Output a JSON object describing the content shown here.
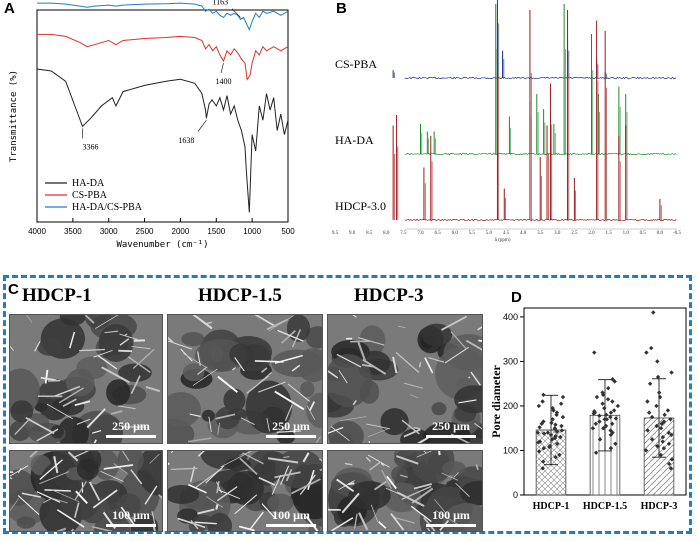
{
  "panels": {
    "a": "A",
    "b": "B",
    "c": "C",
    "d": "D"
  },
  "chart_data": [
    {
      "type": "line",
      "panel": "A",
      "xlabel": "Wavenumber (cm⁻¹)",
      "ylabel": "Transmittance (%)",
      "xlim": [
        4000,
        500
      ],
      "xticks": [
        "4000",
        "3500",
        "3000",
        "2500",
        "2000",
        "1500",
        "1000",
        "500"
      ],
      "series": [
        {
          "name": "HA-DA",
          "color": "#222222",
          "x": [
            4000,
            3800,
            3600,
            3450,
            3366,
            3250,
            3100,
            2950,
            2900,
            2800,
            2500,
            2200,
            2000,
            1800,
            1700,
            1650,
            1638,
            1600,
            1560,
            1500,
            1450,
            1400,
            1350,
            1300,
            1250,
            1200,
            1150,
            1100,
            1080,
            1040,
            1000,
            950,
            900,
            850,
            800,
            750,
            700,
            650,
            600,
            550,
            500
          ],
          "y": [
            0.8,
            0.79,
            0.74,
            0.6,
            0.52,
            0.56,
            0.62,
            0.66,
            0.62,
            0.69,
            0.72,
            0.74,
            0.75,
            0.73,
            0.68,
            0.6,
            0.56,
            0.63,
            0.65,
            0.62,
            0.66,
            0.6,
            0.67,
            0.58,
            0.62,
            0.55,
            0.5,
            0.42,
            0.3,
            0.1,
            0.48,
            0.4,
            0.62,
            0.55,
            0.68,
            0.6,
            0.66,
            0.5,
            0.58,
            0.48,
            0.55
          ]
        },
        {
          "name": "CS-PBA",
          "color": "#e0302a",
          "x": [
            4000,
            3800,
            3600,
            3400,
            3300,
            3200,
            3000,
            2900,
            2800,
            2500,
            2200,
            2000,
            1800,
            1700,
            1650,
            1600,
            1550,
            1500,
            1450,
            1400,
            1350,
            1300,
            1250,
            1200,
            1150,
            1100,
            1070,
            1030,
            1000,
            950,
            900,
            850,
            800,
            700,
            600,
            500
          ],
          "y": [
            0.92,
            0.92,
            0.91,
            0.88,
            0.86,
            0.87,
            0.89,
            0.87,
            0.89,
            0.9,
            0.905,
            0.91,
            0.905,
            0.89,
            0.85,
            0.87,
            0.84,
            0.86,
            0.82,
            0.79,
            0.84,
            0.82,
            0.85,
            0.83,
            0.8,
            0.78,
            0.7,
            0.72,
            0.78,
            0.84,
            0.82,
            0.86,
            0.84,
            0.86,
            0.84,
            0.86
          ]
        },
        {
          "name": "HA-DA/CS-PBA",
          "color": "#1f7ec2",
          "x": [
            4000,
            3800,
            3600,
            3400,
            3300,
            3200,
            3000,
            2900,
            2800,
            2500,
            2200,
            2000,
            1800,
            1700,
            1650,
            1600,
            1550,
            1500,
            1450,
            1400,
            1350,
            1300,
            1250,
            1200,
            1163,
            1120,
            1080,
            1040,
            1000,
            950,
            900,
            850,
            800,
            700,
            600,
            500
          ],
          "y": [
            0.99,
            0.99,
            0.985,
            0.975,
            0.97,
            0.975,
            0.98,
            0.975,
            0.98,
            0.985,
            0.987,
            0.99,
            0.985,
            0.975,
            0.95,
            0.96,
            0.94,
            0.95,
            0.93,
            0.92,
            0.94,
            0.93,
            0.94,
            0.93,
            0.91,
            0.92,
            0.89,
            0.86,
            0.9,
            0.94,
            0.92,
            0.95,
            0.94,
            0.95,
            0.93,
            0.95
          ]
        }
      ],
      "annotations": [
        {
          "text": "3366",
          "x": 3366,
          "series": "HA-DA"
        },
        {
          "text": "1638",
          "x": 1638,
          "series": "HA-DA"
        },
        {
          "text": "1400",
          "x": 1400,
          "series": "CS-PBA"
        },
        {
          "text": "1163",
          "x": 1163,
          "series": "HA-DA/CS-PBA"
        }
      ],
      "legend": "bottom-left"
    },
    {
      "type": "line",
      "panel": "B",
      "xlabel": "δ (ppm)",
      "xlim": [
        9.5,
        -0.5
      ],
      "xticks": [
        "9.5",
        "9.0",
        "8.5",
        "8.0",
        "7.5",
        "7.0",
        "6.5",
        "6.0",
        "5.5",
        "5.0",
        "4.5",
        "4.0",
        "3.5",
        "3.0",
        "2.5",
        "2.0",
        "1.5",
        "1.0",
        "0.5",
        "0.0",
        "-0.5"
      ],
      "series": [
        {
          "name": "CS-PBA",
          "color": "#1c2f8c",
          "peaks": [
            [
              7.8,
              0.1
            ],
            [
              4.75,
              1.0
            ],
            [
              4.6,
              0.35
            ],
            [
              2.7,
              0.5
            ],
            [
              1.85,
              0.25
            ],
            [
              1.6,
              0.08
            ]
          ]
        },
        {
          "name": "HA-DA",
          "color": "#1f8a2e",
          "peaks": [
            [
              7.0,
              0.2
            ],
            [
              6.8,
              0.15
            ],
            [
              6.6,
              0.15
            ],
            [
              4.8,
              1.0
            ],
            [
              4.4,
              0.25
            ],
            [
              3.8,
              0.35
            ],
            [
              3.6,
              0.4
            ],
            [
              3.4,
              0.3
            ],
            [
              3.1,
              0.2
            ],
            [
              2.8,
              1.0
            ],
            [
              2.0,
              0.8
            ],
            [
              1.8,
              0.4
            ],
            [
              1.2,
              0.45
            ],
            [
              1.0,
              0.4
            ]
          ]
        },
        {
          "name": "HDCP-3.0",
          "color": "#9c1a1a",
          "peaks": [
            [
              7.8,
              0.45
            ],
            [
              7.7,
              0.5
            ],
            [
              6.9,
              0.25
            ],
            [
              6.7,
              0.4
            ],
            [
              4.75,
              1.0
            ],
            [
              4.55,
              0.15
            ],
            [
              3.8,
              1.0
            ],
            [
              3.5,
              0.3
            ],
            [
              3.3,
              0.45
            ],
            [
              3.2,
              0.65
            ],
            [
              2.7,
              1.0
            ],
            [
              2.5,
              0.2
            ],
            [
              1.85,
              0.95
            ],
            [
              1.6,
              0.9
            ],
            [
              1.2,
              0.4
            ],
            [
              1.0,
              0.45
            ],
            [
              0.0,
              0.1
            ]
          ]
        }
      ]
    },
    {
      "type": "bar",
      "panel": "D",
      "categories": [
        "HDCP-1",
        "HDCP-1.5",
        "HDCP-3"
      ],
      "values": [
        146,
        179,
        173
      ],
      "errors": [
        78,
        80,
        88
      ],
      "ylabel": "Pore diameter",
      "ylim": [
        0,
        420
      ],
      "yticks": [
        0,
        100,
        200,
        300,
        400
      ],
      "points": [
        [
          60,
          75,
          85,
          90,
          98,
          105,
          110,
          115,
          120,
          125,
          128,
          132,
          135,
          138,
          140,
          142,
          145,
          148,
          150,
          152,
          155,
          158,
          160,
          162,
          165,
          170,
          175,
          180,
          185,
          190,
          195,
          200,
          205,
          210,
          220,
          225,
          140,
          130,
          118,
          108
        ],
        [
          95,
          105,
          115,
          125,
          135,
          140,
          145,
          150,
          155,
          160,
          165,
          170,
          172,
          175,
          178,
          180,
          183,
          185,
          188,
          190,
          195,
          200,
          205,
          210,
          215,
          220,
          225,
          230,
          240,
          255,
          260,
          320,
          170,
          160,
          150,
          185
        ],
        [
          60,
          70,
          80,
          90,
          100,
          105,
          110,
          115,
          125,
          135,
          140,
          145,
          150,
          155,
          160,
          165,
          170,
          175,
          180,
          190,
          200,
          210,
          220,
          230,
          250,
          265,
          275,
          300,
          320,
          330,
          410,
          130,
          120,
          185
        ]
      ]
    }
  ],
  "sem": {
    "titles": [
      "HDCP-1",
      "HDCP-1.5",
      "HDCP-3"
    ],
    "scale_top": "250 μm",
    "scale_bottom": "100 μm"
  }
}
